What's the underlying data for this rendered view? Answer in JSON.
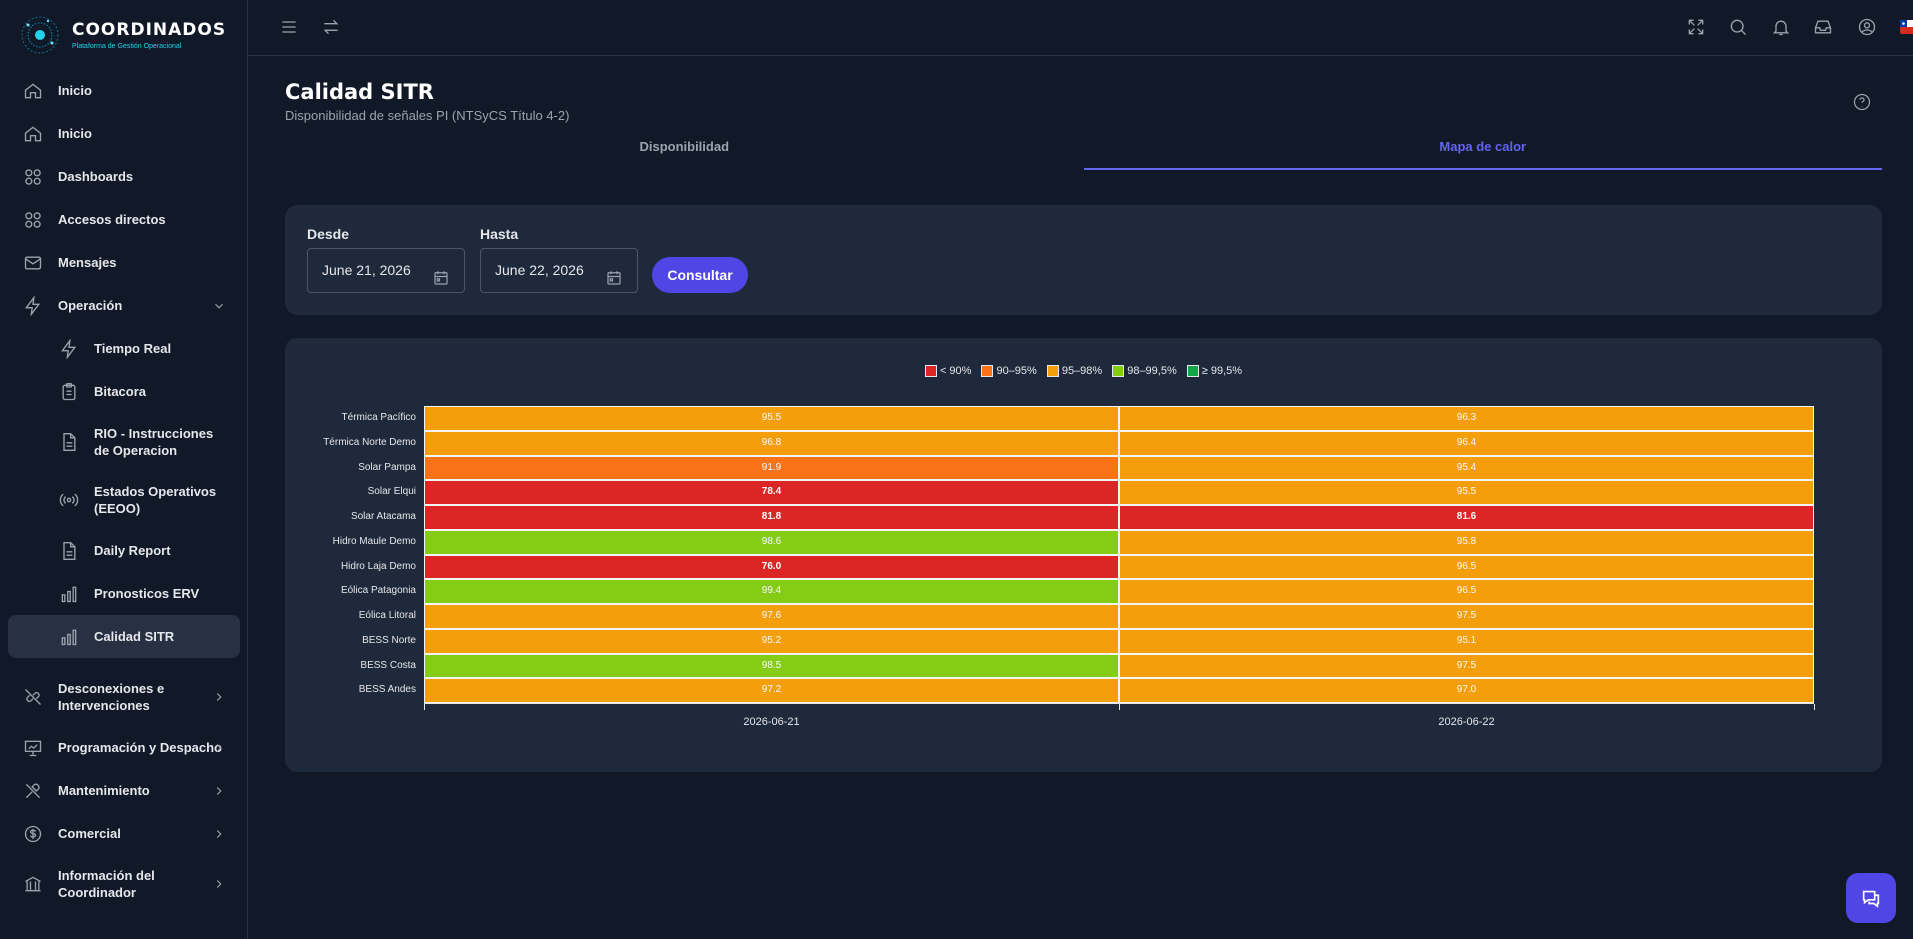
{
  "brand": {
    "title": "COORDINADOS",
    "subtitle": "Plataforma de Gestión Operacional"
  },
  "sidebar": {
    "items": [
      {
        "label": "Inicio",
        "icon": "home-icon"
      },
      {
        "label": "Inicio",
        "icon": "home-icon"
      },
      {
        "label": "Dashboards",
        "icon": "grid-icon"
      },
      {
        "label": "Accesos directos",
        "icon": "grid-icon"
      },
      {
        "label": "Mensajes",
        "icon": "mail-icon"
      },
      {
        "label": "Operación",
        "icon": "bolt-icon",
        "expanded": true
      },
      {
        "label": "Tiempo Real",
        "icon": "bolt-icon"
      },
      {
        "label": "Bitacora",
        "icon": "clipboard-icon"
      },
      {
        "label": "RIO - Instrucciones de Operacion",
        "icon": "document-icon"
      },
      {
        "label": "Estados Operativos (EEOO)",
        "icon": "broadcast-icon"
      },
      {
        "label": "Daily Report",
        "icon": "document-icon"
      },
      {
        "label": "Pronosticos ERV",
        "icon": "bar-chart-icon"
      },
      {
        "label": "Calidad SITR",
        "icon": "bar-chart-icon",
        "active": true
      },
      {
        "label": "Desconexiones e Intervenciones",
        "icon": "unplug-icon"
      },
      {
        "label": "Programación y Despacho",
        "icon": "presentation-icon"
      },
      {
        "label": "Mantenimiento",
        "icon": "tools-icon"
      },
      {
        "label": "Comercial",
        "icon": "dollar-icon"
      },
      {
        "label": "Información del Coordinador",
        "icon": "building-icon"
      }
    ]
  },
  "page": {
    "title": "Calidad SITR",
    "subtitle": "Disponibilidad de señales PI (NTSyCS Título 4-2)"
  },
  "tabs": [
    {
      "label": "Disponibilidad",
      "active": false
    },
    {
      "label": "Mapa de calor",
      "active": true
    }
  ],
  "filters": {
    "from_label": "Desde",
    "from_value": "June 21, 2026",
    "to_label": "Hasta",
    "to_value": "June 22, 2026",
    "submit_label": "Consultar"
  },
  "colors": {
    "accent": "#4f46e5",
    "lt90": "#dc2626",
    "r90_95": "#f97316",
    "r95_98": "#f59e0b",
    "r98_995": "#84cc16",
    "ge995": "#16a34a"
  },
  "chart_data": {
    "type": "heatmap",
    "legend": [
      {
        "label": "< 90%",
        "color": "#dc2626"
      },
      {
        "label": "90–95%",
        "color": "#f97316"
      },
      {
        "label": "95–98%",
        "color": "#f59e0b"
      },
      {
        "label": "98–99,5%",
        "color": "#84cc16"
      },
      {
        "label": "≥ 99,5%",
        "color": "#16a34a"
      }
    ],
    "x": [
      "2026-06-21",
      "2026-06-22"
    ],
    "y": [
      "Térmica Pacífico",
      "Térmica Norte Demo",
      "Solar Pampa",
      "Solar Elqui",
      "Solar Atacama",
      "Hidro Maule Demo",
      "Hidro Laja Demo",
      "Eólica Patagonia",
      "Eólica Litoral",
      "BESS Norte",
      "BESS Costa",
      "BESS Andes"
    ],
    "values": [
      [
        95.5,
        96.3
      ],
      [
        96.8,
        96.4
      ],
      [
        91.9,
        95.4
      ],
      [
        78.4,
        95.5
      ],
      [
        81.8,
        81.6
      ],
      [
        98.6,
        95.8
      ],
      [
        76.0,
        96.5
      ],
      [
        99.4,
        96.5
      ],
      [
        97.6,
        97.5
      ],
      [
        95.2,
        95.1
      ],
      [
        98.5,
        97.5
      ],
      [
        97.2,
        97.0
      ]
    ]
  }
}
